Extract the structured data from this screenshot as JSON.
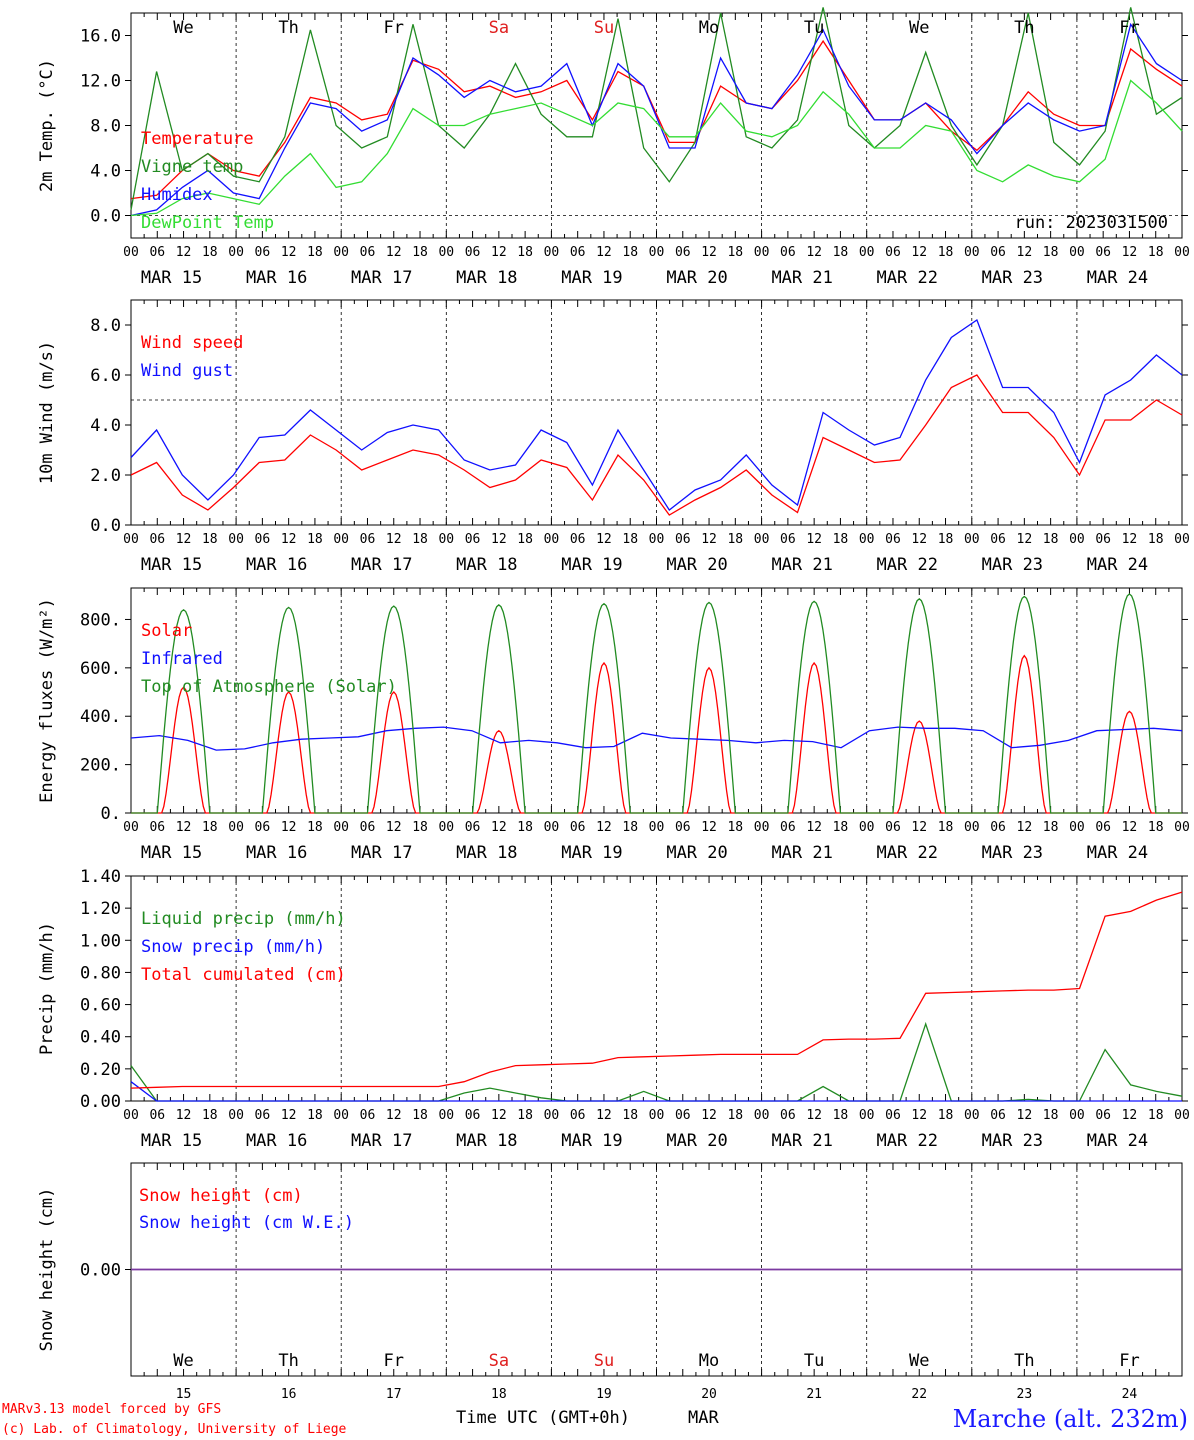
{
  "run_label": "run: 2023031500",
  "x_axis": {
    "hour_ticks": [
      "00",
      "06",
      "12",
      "18"
    ],
    "last_tick": "00",
    "dates": [
      "MAR 15",
      "MAR 16",
      "MAR 17",
      "MAR 18",
      "MAR 19",
      "MAR 20",
      "MAR 21",
      "MAR 22",
      "MAR 23",
      "MAR 24"
    ],
    "weekdays": [
      "We",
      "Th",
      "Fr",
      "Sa",
      "Su",
      "Mo",
      "Tu",
      "We",
      "Th",
      "Fr"
    ],
    "weekday_colors": [
      "#000000",
      "#000000",
      "#000000",
      "#e02020",
      "#e02020",
      "#000000",
      "#000000",
      "#000000",
      "#000000",
      "#000000"
    ],
    "day_numbers": [
      "15",
      "16",
      "17",
      "18",
      "19",
      "20",
      "21",
      "22",
      "23",
      "24"
    ],
    "title": "Time UTC (GMT+0h)",
    "month": "MAR"
  },
  "footer": {
    "model": "MARv3.13 model forced by GFS",
    "copyright": "(c) Lab. of Climatology, University of Liege",
    "station": "Marche (alt. 232m)"
  },
  "colors": {
    "red": "#ff0000",
    "blue": "#1010ff",
    "green": "#228b22",
    "lightgreen": "#33dd33",
    "purple": "#7a3aa0"
  },
  "chart_data": [
    {
      "id": "temp",
      "type": "line",
      "ylabel": "2m Temp. (°C)",
      "ylim": [
        -2,
        18
      ],
      "yticks": [
        "0.0",
        "4.0",
        "8.0",
        "12.0",
        "16.0"
      ],
      "reference_line": 0,
      "series": [
        {
          "name": "Temperature",
          "color": "#ff0000",
          "values": [
            1.5,
            1.8,
            4.0,
            5.5,
            4.0,
            3.5,
            6.5,
            10.5,
            10.0,
            8.5,
            9.0,
            13.8,
            13.0,
            11.0,
            11.5,
            10.5,
            11.0,
            12.0,
            8.5,
            12.8,
            11.5,
            6.5,
            6.5,
            11.5,
            10.0,
            9.5,
            12.0,
            15.5,
            12.0,
            8.5,
            8.5,
            10.0,
            7.5,
            5.8,
            8.0,
            11.0,
            9.0,
            8.0,
            8.0,
            14.8,
            13.0,
            11.5
          ]
        },
        {
          "name": "Vigne temp",
          "color": "#228b22",
          "values": [
            0.5,
            12.8,
            4.0,
            5.5,
            3.5,
            3.0,
            7.0,
            16.5,
            8.0,
            6.0,
            7.0,
            17.0,
            8.0,
            6.0,
            9.0,
            13.5,
            9.0,
            7.0,
            7.0,
            17.5,
            6.0,
            3.0,
            6.5,
            18.0,
            7.0,
            6.0,
            8.5,
            18.5,
            8.0,
            6.0,
            8.0,
            14.5,
            8.0,
            4.5,
            8.0,
            18.0,
            6.5,
            4.5,
            7.5,
            18.5,
            9.0,
            10.5
          ]
        },
        {
          "name": "Humidex",
          "color": "#1010ff",
          "values": [
            0.0,
            0.5,
            2.5,
            4.0,
            2.0,
            1.5,
            6.0,
            10.0,
            9.5,
            7.5,
            8.5,
            14.0,
            12.5,
            10.5,
            12.0,
            11.0,
            11.5,
            13.5,
            8.0,
            13.5,
            11.5,
            6.0,
            6.0,
            14.0,
            10.0,
            9.5,
            12.5,
            16.5,
            11.5,
            8.5,
            8.5,
            10.0,
            8.5,
            5.5,
            8.0,
            10.0,
            8.5,
            7.5,
            8.0,
            17.0,
            13.5,
            12.0
          ]
        },
        {
          "name": "DewPoint Temp",
          "color": "#33dd33",
          "values": [
            0.0,
            0.2,
            1.5,
            2.0,
            1.5,
            1.0,
            3.5,
            5.5,
            2.5,
            3.0,
            5.5,
            9.5,
            8.0,
            8.0,
            9.0,
            9.5,
            10.0,
            9.0,
            8.0,
            10.0,
            9.5,
            7.0,
            7.0,
            10.0,
            7.5,
            7.0,
            8.0,
            11.0,
            9.0,
            6.0,
            6.0,
            8.0,
            7.5,
            4.0,
            3.0,
            4.5,
            3.5,
            3.0,
            5.0,
            12.0,
            10.0,
            7.5
          ]
        }
      ]
    },
    {
      "id": "wind",
      "type": "line",
      "ylabel": "10m Wind (m/s)",
      "ylim": [
        0,
        9
      ],
      "yticks": [
        "0.0",
        "2.0",
        "4.0",
        "6.0",
        "8.0"
      ],
      "reference_line": 5,
      "series": [
        {
          "name": "Wind speed",
          "color": "#ff0000",
          "values": [
            2.0,
            2.5,
            1.2,
            0.6,
            1.5,
            2.5,
            2.6,
            3.6,
            3.0,
            2.2,
            2.6,
            3.0,
            2.8,
            2.2,
            1.5,
            1.8,
            2.6,
            2.3,
            1.0,
            2.8,
            1.8,
            0.4,
            1.0,
            1.5,
            2.2,
            1.2,
            0.5,
            3.5,
            3.0,
            2.5,
            2.6,
            4.0,
            5.5,
            6.0,
            4.5,
            4.5,
            3.5,
            2.0,
            4.2,
            4.2,
            5.0,
            4.4
          ]
        },
        {
          "name": "Wind gust",
          "color": "#1010ff",
          "values": [
            2.7,
            3.8,
            2.0,
            1.0,
            2.0,
            3.5,
            3.6,
            4.6,
            3.8,
            3.0,
            3.7,
            4.0,
            3.8,
            2.6,
            2.2,
            2.4,
            3.8,
            3.3,
            1.6,
            3.8,
            2.2,
            0.6,
            1.4,
            1.8,
            2.8,
            1.6,
            0.8,
            4.5,
            3.8,
            3.2,
            3.5,
            5.8,
            7.5,
            8.2,
            5.5,
            5.5,
            4.5,
            2.5,
            5.2,
            5.8,
            6.8,
            6.0
          ]
        }
      ]
    },
    {
      "id": "flux",
      "type": "line",
      "ylabel": "Energy fluxes (W/m²)",
      "ylim": [
        0,
        930
      ],
      "yticks": [
        "0.",
        "200.",
        "400.",
        "600.",
        "800."
      ],
      "series": [
        {
          "name": "Solar",
          "color": "#ff0000",
          "peaks": [
            520,
            500,
            500,
            340,
            620,
            600,
            620,
            380,
            650,
            420
          ]
        },
        {
          "name": "Infrared",
          "color": "#1010ff",
          "values": [
            310,
            320,
            300,
            260,
            265,
            290,
            305,
            310,
            315,
            340,
            350,
            355,
            340,
            290,
            300,
            290,
            270,
            275,
            330,
            310,
            305,
            300,
            290,
            300,
            295,
            270,
            340,
            355,
            350,
            350,
            340,
            270,
            280,
            300,
            340,
            345,
            350,
            340
          ]
        },
        {
          "name": "Top of Atmosphere (Solar)",
          "color": "#228b22",
          "peaks": [
            840,
            850,
            855,
            860,
            865,
            870,
            875,
            885,
            895,
            905
          ]
        }
      ]
    },
    {
      "id": "precip",
      "type": "line",
      "ylabel": "Precip (mm/h)",
      "ylim": [
        0,
        1.4
      ],
      "yticks": [
        "0.00",
        "0.20",
        "0.40",
        "0.60",
        "0.80",
        "1.00",
        "1.20",
        "1.40"
      ],
      "series": [
        {
          "name": "Liquid precip (mm/h)",
          "color": "#228b22",
          "values": [
            0.22,
            0,
            0,
            0,
            0,
            0,
            0,
            0,
            0,
            0,
            0,
            0,
            0,
            0.05,
            0.08,
            0.05,
            0.02,
            0,
            0,
            0,
            0.06,
            0,
            0,
            0,
            0,
            0,
            0,
            0.09,
            0,
            0,
            0,
            0.48,
            0,
            0,
            0,
            0.01,
            0,
            0,
            0.32,
            0.1,
            0.06,
            0.03
          ]
        },
        {
          "name": "Snow precip (mm/h)",
          "color": "#1010ff",
          "values": [
            0.12,
            0,
            0,
            0,
            0,
            0,
            0,
            0,
            0,
            0,
            0,
            0,
            0,
            0,
            0,
            0,
            0,
            0,
            0,
            0,
            0,
            0,
            0,
            0,
            0,
            0,
            0,
            0,
            0,
            0,
            0,
            0,
            0,
            0,
            0,
            0,
            0,
            0,
            0,
            0,
            0,
            0
          ]
        },
        {
          "name": "Total cumulated (cm)",
          "color": "#ff0000",
          "values": [
            0.08,
            0.085,
            0.09,
            0.09,
            0.09,
            0.09,
            0.09,
            0.09,
            0.09,
            0.09,
            0.09,
            0.09,
            0.09,
            0.12,
            0.18,
            0.22,
            0.225,
            0.23,
            0.235,
            0.27,
            0.275,
            0.28,
            0.285,
            0.29,
            0.29,
            0.29,
            0.29,
            0.38,
            0.385,
            0.385,
            0.39,
            0.67,
            0.675,
            0.68,
            0.685,
            0.69,
            0.69,
            0.7,
            1.15,
            1.18,
            1.25,
            1.3
          ]
        }
      ]
    },
    {
      "id": "snow",
      "type": "line",
      "ylabel": "Snow height (cm)",
      "yticks": [
        "0.00"
      ],
      "series": [
        {
          "name": "Snow height (cm)",
          "color": "#ff0000",
          "values": [
            0,
            0
          ]
        },
        {
          "name": "Snow height (cm W.E.)",
          "color": "#1010ff",
          "values": [
            0,
            0
          ]
        }
      ]
    }
  ]
}
